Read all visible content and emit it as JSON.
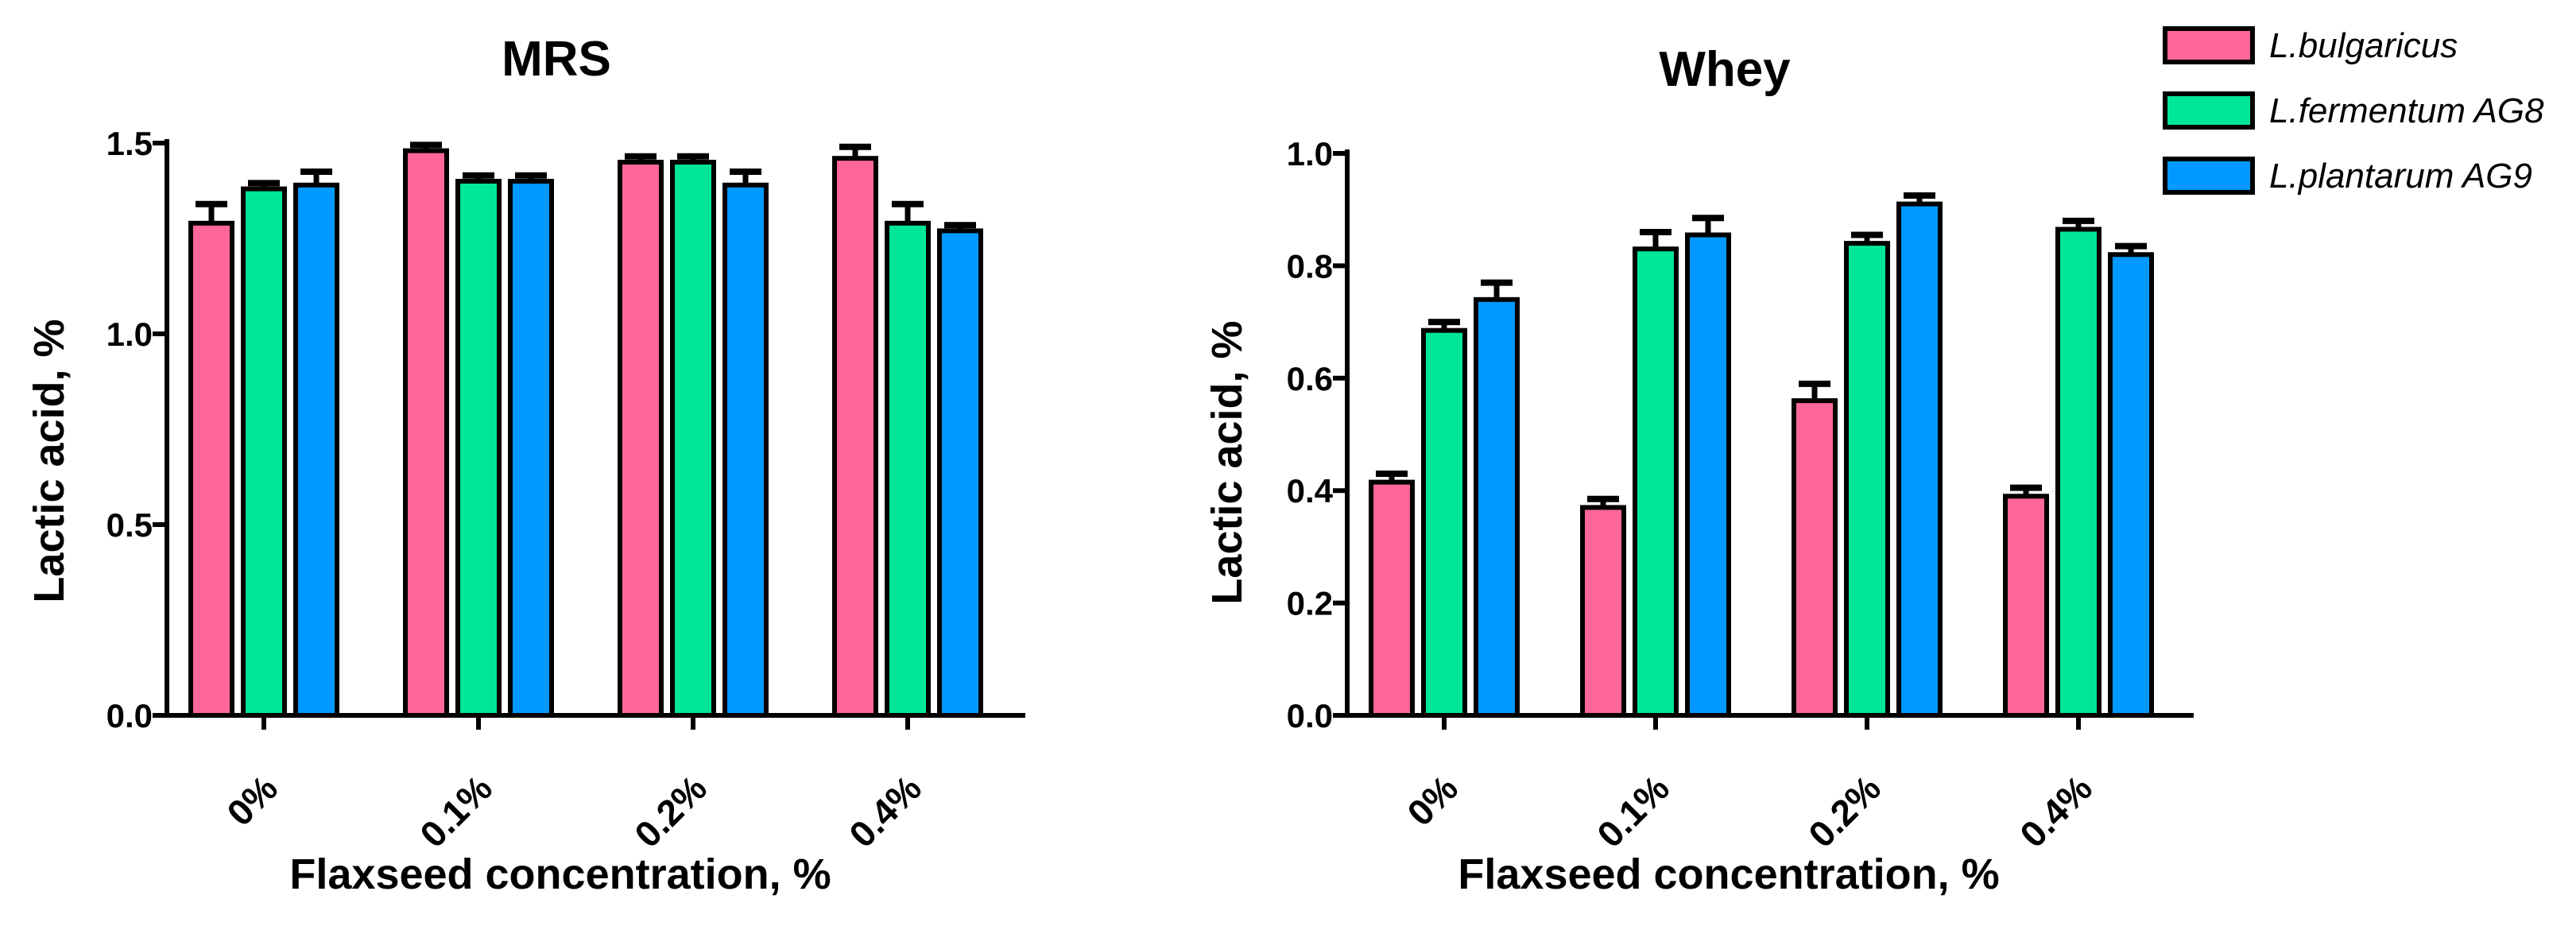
{
  "chart_data": [
    {
      "type": "bar",
      "title": "MRS",
      "xlabel": "Flaxseed concentration, %",
      "ylabel": "Lactic acid, %",
      "ylim": [
        0,
        1.5
      ],
      "yticks": [
        0.0,
        0.5,
        1.0,
        1.5
      ],
      "ytick_labels": [
        "0.0",
        "0.5",
        "1.0",
        "1.5"
      ],
      "categories": [
        "0%",
        "0.1%",
        "0.2%",
        "0.4%"
      ],
      "series": [
        {
          "name": "L.bulgaricus",
          "values": [
            1.29,
            1.48,
            1.45,
            1.46
          ],
          "errors": [
            0.05,
            0.015,
            0.015,
            0.03
          ]
        },
        {
          "name": "L.fermentum AG8",
          "values": [
            1.38,
            1.4,
            1.45,
            1.29
          ],
          "errors": [
            0.015,
            0.015,
            0.015,
            0.05
          ]
        },
        {
          "name": "L.plantarum AG9",
          "values": [
            1.39,
            1.4,
            1.39,
            1.27
          ],
          "errors": [
            0.035,
            0.015,
            0.035,
            0.015
          ]
        }
      ]
    },
    {
      "type": "bar",
      "title": "Whey",
      "xlabel": "Flaxseed concentration, %",
      "ylabel": "Lactic acid, %",
      "ylim": [
        0,
        1.0
      ],
      "yticks": [
        0.0,
        0.2,
        0.4,
        0.6,
        0.8,
        1.0
      ],
      "ytick_labels": [
        "0.0",
        "0.2",
        "0.4",
        "0.6",
        "0.8",
        "1.0"
      ],
      "categories": [
        "0%",
        "0.1%",
        "0.2%",
        "0.4%"
      ],
      "series": [
        {
          "name": "L.bulgaricus",
          "values": [
            0.415,
            0.37,
            0.56,
            0.39
          ],
          "errors": [
            0.015,
            0.015,
            0.03,
            0.015
          ]
        },
        {
          "name": "L.fermentum AG8",
          "values": [
            0.685,
            0.83,
            0.84,
            0.865
          ],
          "errors": [
            0.015,
            0.03,
            0.015,
            0.015
          ]
        },
        {
          "name": "L.plantarum AG9",
          "values": [
            0.74,
            0.855,
            0.91,
            0.82
          ],
          "errors": [
            0.03,
            0.03,
            0.015,
            0.015
          ]
        }
      ]
    }
  ],
  "legend": {
    "position": "top-right",
    "entries": [
      {
        "label": "L.bulgaricus",
        "color": "#ff6699"
      },
      {
        "label": "L.fermentum AG8",
        "color": "#00e699"
      },
      {
        "label": "L.plantarum AG9",
        "color": "#0099ff"
      }
    ]
  },
  "colors": {
    "series": [
      "#ff6699",
      "#00e699",
      "#0099ff"
    ],
    "outline": "#000000"
  }
}
